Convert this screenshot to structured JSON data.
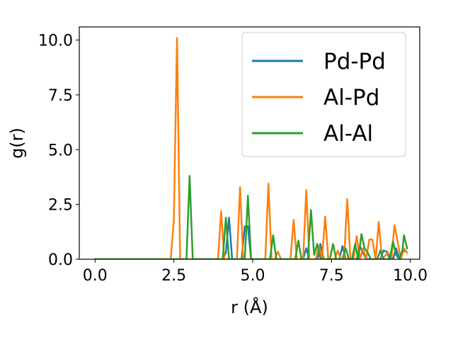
{
  "chart_data": {
    "type": "line",
    "title": "",
    "xlabel": "r (Å)",
    "ylabel": "g(r)",
    "xlim": [
      -0.5,
      10.3
    ],
    "ylim": [
      0,
      10.6
    ],
    "xticks": [
      0,
      2.5,
      5,
      7.5,
      10
    ],
    "xtick_labels": [
      "0.0",
      "2.5",
      "5.0",
      "7.5",
      "10.0"
    ],
    "yticks": [
      0,
      2.5,
      5,
      7.5,
      10
    ],
    "ytick_labels": [
      "0.0",
      "2.5",
      "5.0",
      "7.5",
      "10.0"
    ],
    "grid": false,
    "legend_position": "top-right",
    "series": [
      {
        "name": "Pd-Pd",
        "color": "#1f77b4",
        "points": [
          [
            0,
            0
          ],
          [
            4.05,
            0
          ],
          [
            4.15,
            0.3
          ],
          [
            4.25,
            1.9
          ],
          [
            4.35,
            0
          ],
          [
            4.65,
            0
          ],
          [
            4.75,
            1.5
          ],
          [
            4.85,
            1.5
          ],
          [
            4.95,
            0
          ],
          [
            6.6,
            0
          ],
          [
            6.7,
            0.5
          ],
          [
            6.8,
            0
          ],
          [
            7.05,
            0
          ],
          [
            7.15,
            0.7
          ],
          [
            7.25,
            0
          ],
          [
            7.75,
            0
          ],
          [
            7.85,
            0.6
          ],
          [
            7.95,
            0
          ],
          [
            8.3,
            0
          ],
          [
            8.4,
            0.6
          ],
          [
            8.5,
            0.3
          ],
          [
            8.6,
            0
          ],
          [
            9.05,
            0
          ],
          [
            9.15,
            0.4
          ],
          [
            9.25,
            0.35
          ],
          [
            9.35,
            0
          ],
          [
            9.45,
            0
          ],
          [
            9.55,
            0.5
          ],
          [
            9.65,
            0
          ],
          [
            9.75,
            0.3
          ],
          [
            9.85,
            0.4
          ]
        ]
      },
      {
        "name": "Al-Pd",
        "color": "#ff7f0e",
        "points": [
          [
            0,
            0
          ],
          [
            2.4,
            0
          ],
          [
            2.5,
            1.8
          ],
          [
            2.6,
            10.1
          ],
          [
            2.7,
            0
          ],
          [
            3.9,
            0
          ],
          [
            4.0,
            2.2
          ],
          [
            4.1,
            0
          ],
          [
            4.5,
            0
          ],
          [
            4.6,
            3.3
          ],
          [
            4.7,
            0
          ],
          [
            5.4,
            0
          ],
          [
            5.5,
            3.45
          ],
          [
            5.6,
            0
          ],
          [
            5.7,
            0
          ],
          [
            5.8,
            0.35
          ],
          [
            5.9,
            0
          ],
          [
            6.2,
            0
          ],
          [
            6.3,
            1.8
          ],
          [
            6.4,
            0
          ],
          [
            6.6,
            0
          ],
          [
            6.7,
            3.15
          ],
          [
            6.8,
            0
          ],
          [
            7.0,
            0
          ],
          [
            7.1,
            0.6
          ],
          [
            7.2,
            0
          ],
          [
            7.3,
            1.95
          ],
          [
            7.4,
            0
          ],
          [
            7.6,
            0
          ],
          [
            7.7,
            0.4
          ],
          [
            7.8,
            0
          ],
          [
            7.9,
            0
          ],
          [
            8.0,
            2.75
          ],
          [
            8.1,
            0
          ],
          [
            8.2,
            0
          ],
          [
            8.3,
            1.05
          ],
          [
            8.4,
            0
          ],
          [
            8.5,
            0.5
          ],
          [
            8.6,
            0
          ],
          [
            8.7,
            0.9
          ],
          [
            8.8,
            0.9
          ],
          [
            8.9,
            0
          ],
          [
            9.0,
            1.7
          ],
          [
            9.1,
            0
          ],
          [
            9.3,
            0.3
          ],
          [
            9.4,
            0
          ],
          [
            9.5,
            1.55
          ],
          [
            9.6,
            0.8
          ],
          [
            9.7,
            0
          ],
          [
            9.8,
            0.5
          ],
          [
            9.9,
            0.3
          ]
        ]
      },
      {
        "name": "Al-Al",
        "color": "#2ca02c",
        "points": [
          [
            0,
            0
          ],
          [
            2.9,
            0
          ],
          [
            3.0,
            3.8
          ],
          [
            3.1,
            0
          ],
          [
            4.05,
            0
          ],
          [
            4.15,
            1.9
          ],
          [
            4.25,
            0
          ],
          [
            4.75,
            0
          ],
          [
            4.85,
            2.9
          ],
          [
            4.95,
            0
          ],
          [
            5.55,
            0
          ],
          [
            5.65,
            1.1
          ],
          [
            5.75,
            0
          ],
          [
            6.35,
            0
          ],
          [
            6.45,
            0.85
          ],
          [
            6.55,
            0
          ],
          [
            6.75,
            0
          ],
          [
            6.85,
            2.25
          ],
          [
            6.95,
            0.2
          ],
          [
            7.05,
            0.7
          ],
          [
            7.15,
            0
          ],
          [
            7.45,
            0
          ],
          [
            7.55,
            0.7
          ],
          [
            7.65,
            0
          ],
          [
            7.85,
            0
          ],
          [
            7.95,
            0.5
          ],
          [
            8.05,
            0
          ],
          [
            8.15,
            0
          ],
          [
            8.25,
            0.7
          ],
          [
            8.35,
            0
          ],
          [
            8.45,
            1.15
          ],
          [
            8.55,
            0.5
          ],
          [
            8.65,
            0.3
          ],
          [
            8.75,
            0
          ],
          [
            8.95,
            0
          ],
          [
            9.05,
            0.4
          ],
          [
            9.15,
            0
          ],
          [
            9.35,
            0
          ],
          [
            9.45,
            0.8
          ],
          [
            9.55,
            0.2
          ],
          [
            9.65,
            0
          ],
          [
            9.75,
            0.4
          ],
          [
            9.8,
            1.1
          ],
          [
            9.9,
            0.5
          ]
        ]
      }
    ]
  }
}
